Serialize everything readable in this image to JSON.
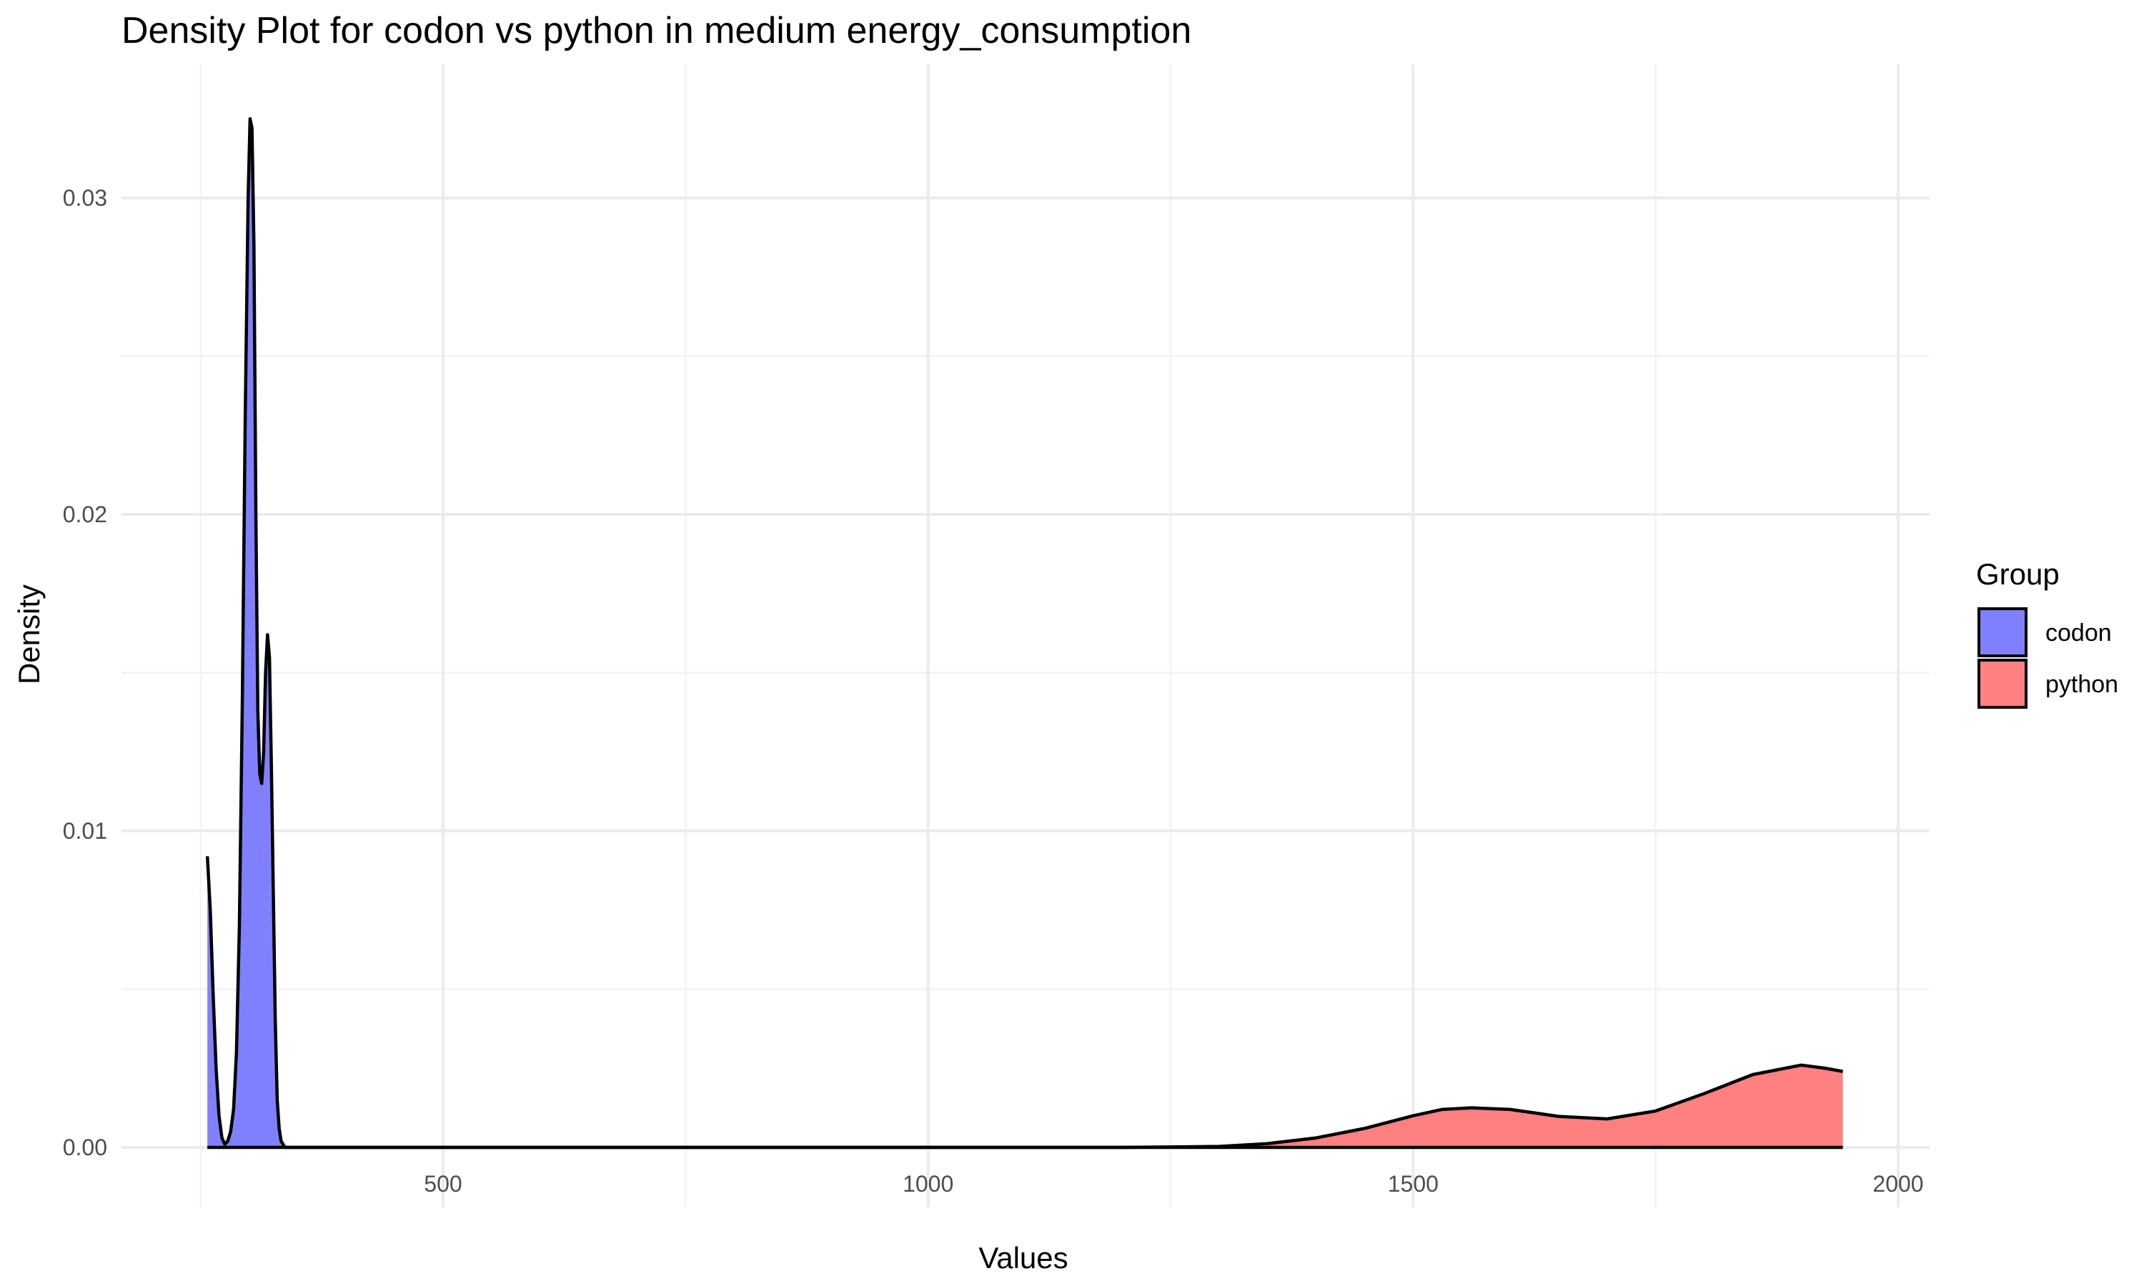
{
  "chart_data": {
    "type": "area",
    "subtype": "density",
    "title": "Density Plot for codon vs python in medium energy_consumption",
    "xlabel": "Values",
    "ylabel": "Density",
    "xlim": [
      220,
      2050
    ],
    "ylim": [
      -0.0015,
      0.0338
    ],
    "x_ticks": [
      500,
      1000,
      1500,
      2000
    ],
    "x_tick_labels": [
      "500",
      "1000",
      "1500",
      "2000"
    ],
    "y_ticks": [
      0.0,
      0.01,
      0.02,
      0.03
    ],
    "y_tick_labels": [
      "0.00",
      "0.01",
      "0.02",
      "0.03"
    ],
    "grid": true,
    "legend": {
      "title": "Group",
      "position": "right",
      "entries": [
        {
          "label": "codon",
          "color": "#8080ff"
        },
        {
          "label": "python",
          "color": "#ff8080"
        }
      ]
    },
    "series": [
      {
        "name": "codon",
        "fill": "#8080ff",
        "points": [
          [
            257,
            0.0092
          ],
          [
            260,
            0.0075
          ],
          [
            263,
            0.0048
          ],
          [
            266,
            0.0025
          ],
          [
            269,
            0.001
          ],
          [
            272,
            0.0003
          ],
          [
            275,
            0.0001
          ],
          [
            278,
            0.0002
          ],
          [
            281,
            0.0005
          ],
          [
            284,
            0.0012
          ],
          [
            287,
            0.003
          ],
          [
            290,
            0.007
          ],
          [
            293,
            0.014
          ],
          [
            296,
            0.023
          ],
          [
            299,
            0.03
          ],
          [
            301,
            0.0325
          ],
          [
            303,
            0.0322
          ],
          [
            305,
            0.0285
          ],
          [
            307,
            0.02
          ],
          [
            309,
            0.0138
          ],
          [
            311,
            0.0118
          ],
          [
            313,
            0.0115
          ],
          [
            315,
            0.0125
          ],
          [
            317,
            0.015
          ],
          [
            319,
            0.0162
          ],
          [
            321,
            0.0155
          ],
          [
            323,
            0.012
          ],
          [
            325,
            0.008
          ],
          [
            327,
            0.004
          ],
          [
            329,
            0.0015
          ],
          [
            331,
            0.0006
          ],
          [
            333,
            0.0002
          ],
          [
            337,
            0.0
          ],
          [
            360,
            0.0
          ],
          [
            500,
            0.0
          ],
          [
            1000,
            0.0
          ],
          [
            1500,
            0.0
          ],
          [
            1943,
            0.0
          ]
        ]
      },
      {
        "name": "python",
        "fill": "#ff8080",
        "points": [
          [
            257,
            0.0
          ],
          [
            1000,
            0.0
          ],
          [
            1200,
            0.0
          ],
          [
            1300,
            3e-05
          ],
          [
            1350,
            0.00012
          ],
          [
            1400,
            0.0003
          ],
          [
            1450,
            0.0006
          ],
          [
            1500,
            0.001
          ],
          [
            1530,
            0.0012
          ],
          [
            1560,
            0.00125
          ],
          [
            1600,
            0.0012
          ],
          [
            1650,
            0.00098
          ],
          [
            1700,
            0.0009
          ],
          [
            1750,
            0.00115
          ],
          [
            1800,
            0.0017
          ],
          [
            1850,
            0.0023
          ],
          [
            1900,
            0.0026
          ],
          [
            1925,
            0.0025
          ],
          [
            1943,
            0.0024
          ]
        ]
      }
    ]
  }
}
